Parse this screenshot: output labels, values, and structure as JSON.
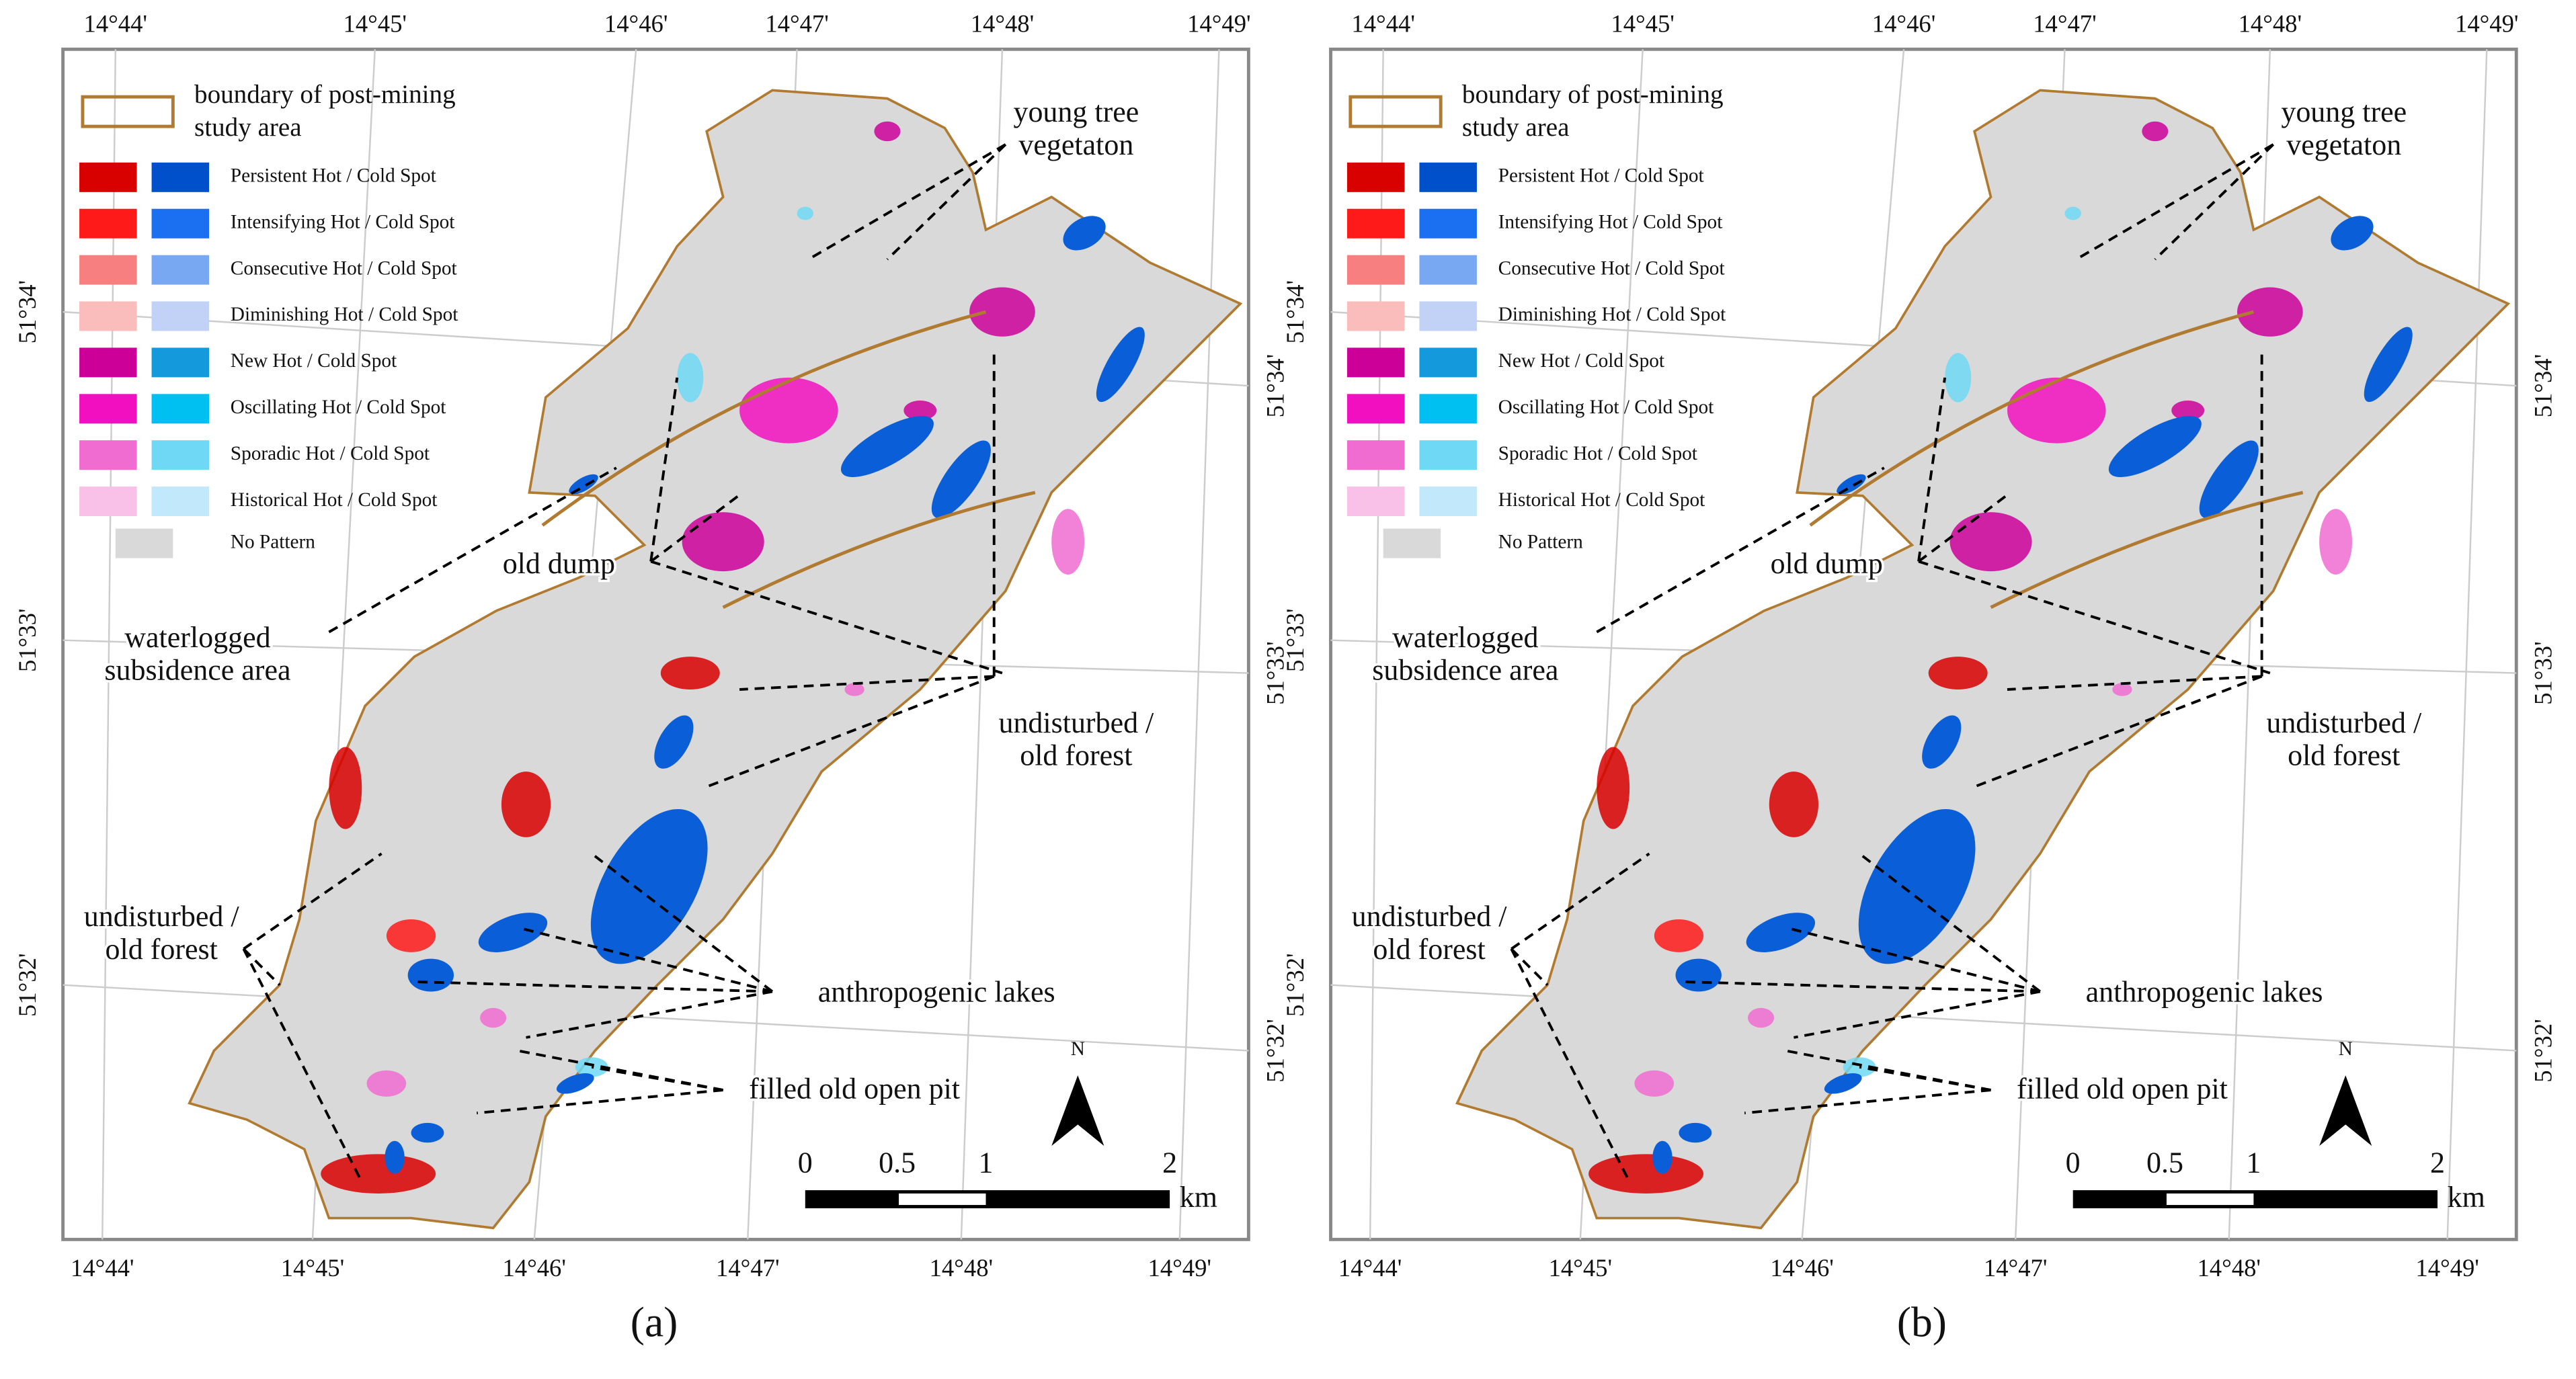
{
  "panels": [
    {
      "label": "(a)",
      "lon_top": [
        "14°44'",
        "14°45'",
        "14°46'",
        "14°47'",
        "14°48'",
        "14°49'"
      ],
      "lon_bottom": [
        "14°44'",
        "14°45'",
        "14°46'",
        "14°47'",
        "14°48'",
        "14°49'"
      ],
      "lat_left": [
        "51°34'",
        "51°33'",
        "51°32'"
      ],
      "lat_right": [
        "51°34'",
        "51°33'",
        "51°32'"
      ],
      "legend_boundary": [
        "boundary of post-mining",
        "study area"
      ],
      "legend": [
        "Persistent Hot / Cold Spot",
        "Intensifying Hot / Cold Spot",
        "Consecutive Hot / Cold Spot",
        "Diminishing Hot / Cold Spot",
        "New Hot / Cold Spot",
        "Oscillating Hot / Cold Spot",
        "Sporadic Hot / Cold Spot",
        "Historical Hot / Cold Spot"
      ],
      "no_pattern": "No Pattern",
      "annotations": [
        {
          "lines": [
            "young tree",
            "vegetaton"
          ]
        },
        {
          "lines": [
            "old dump"
          ]
        },
        {
          "lines": [
            "waterlogged",
            "subsidence area"
          ]
        },
        {
          "lines": [
            "undisturbed /",
            "old forest"
          ]
        },
        {
          "lines": [
            "undisturbed /",
            "old forest"
          ]
        },
        {
          "lines": [
            "anthropogenic lakes"
          ]
        },
        {
          "lines": [
            "filled old open pit"
          ]
        }
      ],
      "north": "N",
      "scale_labels": [
        "0",
        "0.5",
        "1",
        "2"
      ],
      "scale_unit": "km"
    },
    {
      "label": "(b)",
      "lon_top": [
        "14°44'",
        "14°45'",
        "14°46'",
        "14°47'",
        "14°48'",
        "14°49'"
      ],
      "lon_bottom": [
        "14°44'",
        "14°45'",
        "14°46'",
        "14°47'",
        "14°48'",
        "14°49'"
      ],
      "lat_left": [
        "51°34'",
        "51°33'",
        "51°32'"
      ],
      "lat_right": [
        "51°34'",
        "51°33'",
        "51°32'"
      ],
      "legend_boundary": [
        "boundary of post-mining",
        "study area"
      ],
      "legend": [
        "Persistent Hot / Cold Spot",
        "Intensifying Hot / Cold Spot",
        "Consecutive Hot / Cold Spot",
        "Diminishing Hot / Cold Spot",
        "New Hot / Cold Spot",
        "Oscillating Hot / Cold Spot",
        "Sporadic Hot / Cold Spot",
        "Historical Hot / Cold Spot"
      ],
      "no_pattern": "No Pattern",
      "annotations": [
        {
          "lines": [
            "young tree",
            "vegetaton"
          ]
        },
        {
          "lines": [
            "old dump"
          ]
        },
        {
          "lines": [
            "waterlogged",
            "subsidence area"
          ]
        },
        {
          "lines": [
            "undisturbed /",
            "old forest"
          ]
        },
        {
          "lines": [
            "undisturbed /",
            "old forest"
          ]
        },
        {
          "lines": [
            "anthropogenic lakes"
          ]
        },
        {
          "lines": [
            "filled old open pit"
          ]
        }
      ],
      "north": "N",
      "scale_labels": [
        "0",
        "0.5",
        "1",
        "2"
      ],
      "scale_unit": "km"
    }
  ]
}
